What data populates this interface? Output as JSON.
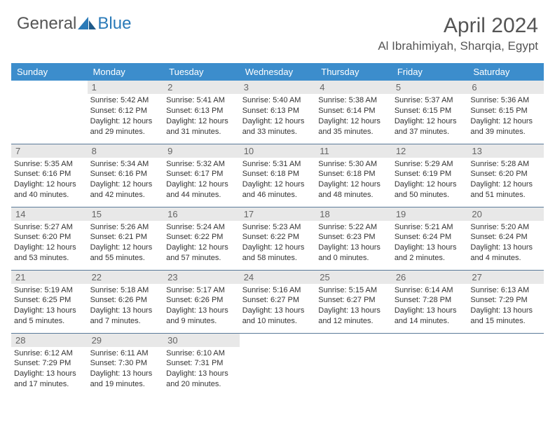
{
  "logo": {
    "text1": "General",
    "text2": "Blue"
  },
  "title": "April 2024",
  "location": "Al Ibrahimiyah, Sharqia, Egypt",
  "colors": {
    "header_bg": "#3c8dcc",
    "header_fg": "#ffffff",
    "daynum_bg": "#e8e8e8",
    "daynum_fg": "#666666",
    "border": "#5a7a9a",
    "text": "#333333",
    "logo_general": "#555555",
    "logo_blue": "#2a7ab8"
  },
  "weekdays": [
    "Sunday",
    "Monday",
    "Tuesday",
    "Wednesday",
    "Thursday",
    "Friday",
    "Saturday"
  ],
  "first_weekday_index": 1,
  "days": [
    {
      "n": 1,
      "sr": "5:42 AM",
      "ss": "6:12 PM",
      "dl": "12 hours and 29 minutes."
    },
    {
      "n": 2,
      "sr": "5:41 AM",
      "ss": "6:13 PM",
      "dl": "12 hours and 31 minutes."
    },
    {
      "n": 3,
      "sr": "5:40 AM",
      "ss": "6:13 PM",
      "dl": "12 hours and 33 minutes."
    },
    {
      "n": 4,
      "sr": "5:38 AM",
      "ss": "6:14 PM",
      "dl": "12 hours and 35 minutes."
    },
    {
      "n": 5,
      "sr": "5:37 AM",
      "ss": "6:15 PM",
      "dl": "12 hours and 37 minutes."
    },
    {
      "n": 6,
      "sr": "5:36 AM",
      "ss": "6:15 PM",
      "dl": "12 hours and 39 minutes."
    },
    {
      "n": 7,
      "sr": "5:35 AM",
      "ss": "6:16 PM",
      "dl": "12 hours and 40 minutes."
    },
    {
      "n": 8,
      "sr": "5:34 AM",
      "ss": "6:16 PM",
      "dl": "12 hours and 42 minutes."
    },
    {
      "n": 9,
      "sr": "5:32 AM",
      "ss": "6:17 PM",
      "dl": "12 hours and 44 minutes."
    },
    {
      "n": 10,
      "sr": "5:31 AM",
      "ss": "6:18 PM",
      "dl": "12 hours and 46 minutes."
    },
    {
      "n": 11,
      "sr": "5:30 AM",
      "ss": "6:18 PM",
      "dl": "12 hours and 48 minutes."
    },
    {
      "n": 12,
      "sr": "5:29 AM",
      "ss": "6:19 PM",
      "dl": "12 hours and 50 minutes."
    },
    {
      "n": 13,
      "sr": "5:28 AM",
      "ss": "6:20 PM",
      "dl": "12 hours and 51 minutes."
    },
    {
      "n": 14,
      "sr": "5:27 AM",
      "ss": "6:20 PM",
      "dl": "12 hours and 53 minutes."
    },
    {
      "n": 15,
      "sr": "5:26 AM",
      "ss": "6:21 PM",
      "dl": "12 hours and 55 minutes."
    },
    {
      "n": 16,
      "sr": "5:24 AM",
      "ss": "6:22 PM",
      "dl": "12 hours and 57 minutes."
    },
    {
      "n": 17,
      "sr": "5:23 AM",
      "ss": "6:22 PM",
      "dl": "12 hours and 58 minutes."
    },
    {
      "n": 18,
      "sr": "5:22 AM",
      "ss": "6:23 PM",
      "dl": "13 hours and 0 minutes."
    },
    {
      "n": 19,
      "sr": "5:21 AM",
      "ss": "6:24 PM",
      "dl": "13 hours and 2 minutes."
    },
    {
      "n": 20,
      "sr": "5:20 AM",
      "ss": "6:24 PM",
      "dl": "13 hours and 4 minutes."
    },
    {
      "n": 21,
      "sr": "5:19 AM",
      "ss": "6:25 PM",
      "dl": "13 hours and 5 minutes."
    },
    {
      "n": 22,
      "sr": "5:18 AM",
      "ss": "6:26 PM",
      "dl": "13 hours and 7 minutes."
    },
    {
      "n": 23,
      "sr": "5:17 AM",
      "ss": "6:26 PM",
      "dl": "13 hours and 9 minutes."
    },
    {
      "n": 24,
      "sr": "5:16 AM",
      "ss": "6:27 PM",
      "dl": "13 hours and 10 minutes."
    },
    {
      "n": 25,
      "sr": "5:15 AM",
      "ss": "6:27 PM",
      "dl": "13 hours and 12 minutes."
    },
    {
      "n": 26,
      "sr": "6:14 AM",
      "ss": "7:28 PM",
      "dl": "13 hours and 14 minutes."
    },
    {
      "n": 27,
      "sr": "6:13 AM",
      "ss": "7:29 PM",
      "dl": "13 hours and 15 minutes."
    },
    {
      "n": 28,
      "sr": "6:12 AM",
      "ss": "7:29 PM",
      "dl": "13 hours and 17 minutes."
    },
    {
      "n": 29,
      "sr": "6:11 AM",
      "ss": "7:30 PM",
      "dl": "13 hours and 19 minutes."
    },
    {
      "n": 30,
      "sr": "6:10 AM",
      "ss": "7:31 PM",
      "dl": "13 hours and 20 minutes."
    }
  ],
  "labels": {
    "sunrise": "Sunrise:",
    "sunset": "Sunset:",
    "daylight": "Daylight:"
  }
}
